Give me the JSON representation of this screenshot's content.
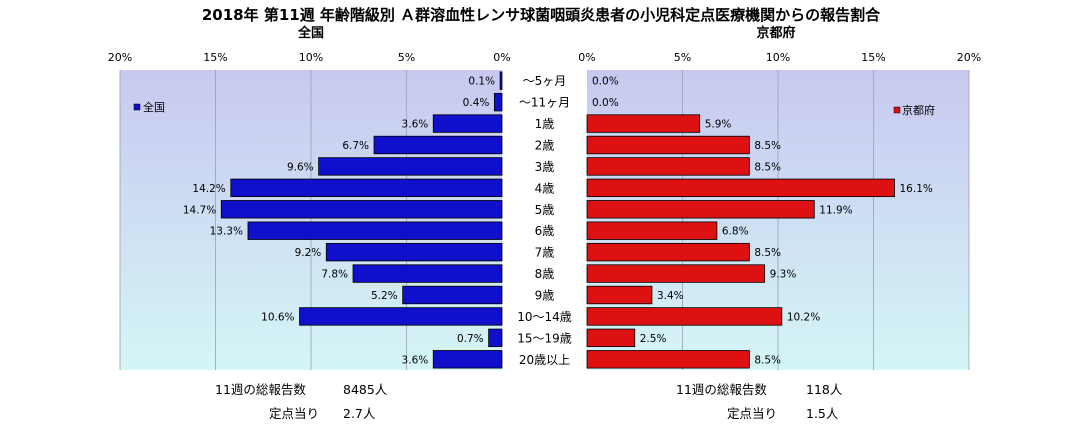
{
  "chart_data": {
    "type": "bar",
    "title": "2018年 第11週 年齢階級別 Ａ群溶血性レンサ球菌咽頭炎患者の小児科定点医療機関からの報告割合",
    "categories": [
      "～5ヶ月",
      "～11ヶ月",
      "1歳",
      "2歳",
      "3歳",
      "4歳",
      "5歳",
      "6歳",
      "7歳",
      "8歳",
      "9歳",
      "10～14歳",
      "15～19歳",
      "20歳以上"
    ],
    "xlim": [
      0,
      20
    ],
    "ticks": [
      0,
      5,
      10,
      15,
      20
    ],
    "tick_labels": [
      "0%",
      "5%",
      "10%",
      "15%",
      "20%"
    ],
    "grid": true,
    "panels": [
      {
        "name": "全国",
        "subtitle": "全国",
        "legend": "全国",
        "legend_position": "top-left",
        "direction": "left",
        "color": "#1010cc",
        "values": [
          0.1,
          0.4,
          3.6,
          6.7,
          9.6,
          14.2,
          14.7,
          13.3,
          9.2,
          7.8,
          5.2,
          10.6,
          0.7,
          3.6
        ],
        "value_labels": [
          "0.1%",
          "0.4%",
          "3.6%",
          "6.7%",
          "9.6%",
          "14.2%",
          "14.7%",
          "13.3%",
          "9.2%",
          "7.8%",
          "5.2%",
          "10.6%",
          "0.7%",
          "3.6%"
        ]
      },
      {
        "name": "京都府",
        "subtitle": "京都府",
        "legend": "京都府",
        "legend_position": "top-right",
        "direction": "right",
        "color": "#dd1111",
        "values": [
          0.0,
          0.0,
          5.9,
          8.5,
          8.5,
          16.1,
          11.9,
          6.8,
          8.5,
          9.3,
          3.4,
          10.2,
          2.5,
          8.5
        ],
        "value_labels": [
          "0.0%",
          "0.0%",
          "5.9%",
          "8.5%",
          "8.5%",
          "16.1%",
          "11.9%",
          "6.8%",
          "8.5%",
          "9.3%",
          "3.4%",
          "10.2%",
          "2.5%",
          "8.5%"
        ]
      }
    ]
  },
  "footer": {
    "national": {
      "total_label": "11週の総報告数",
      "total_value": "8485人",
      "per_label": "定点当り",
      "per_value": "2.7人"
    },
    "kyoto": {
      "total_label": "11週の総報告数",
      "total_value": "118人",
      "per_label": "定点当り",
      "per_value": "1.5人"
    }
  },
  "colors": {
    "plot_top": "#c8c8f0",
    "plot_bottom": "#d4f6f6",
    "grid": "#9aa0b4",
    "bar_border": "#000000"
  }
}
